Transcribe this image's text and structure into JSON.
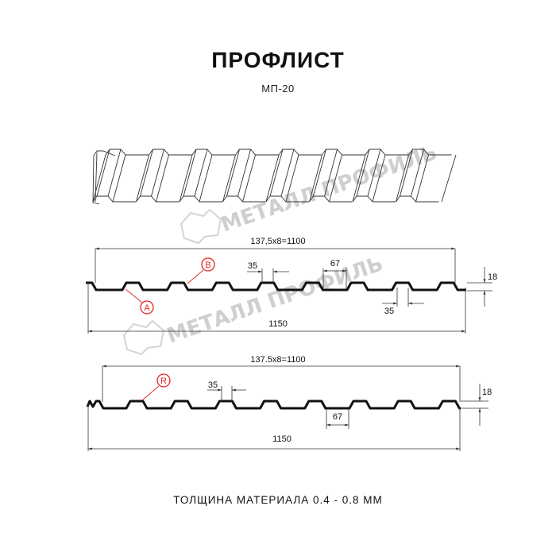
{
  "header": {
    "title": "ПРОФЛИСТ",
    "subtitle": "МП-20"
  },
  "watermark": {
    "brand": "МЕТАЛЛ ПРОФИЛЬ",
    "color": "#cfcfcf"
  },
  "profile_top": {
    "pitch_label": "137,5x8=1100",
    "width_label": "1150",
    "crest_label": "35",
    "valley_label": "67",
    "bottom_crest_label": "35",
    "height_label": "18",
    "marker_b": "B",
    "marker_a": "A"
  },
  "profile_bottom": {
    "pitch_label": "137.5x8=1100",
    "width_label": "1150",
    "crest_label": "35",
    "valley_label": "67",
    "height_label": "18",
    "marker_r": "R"
  },
  "footer": {
    "thickness": "ТОЛЩИНА МАТЕРИАЛА 0.4 - 0.8 ММ"
  },
  "colors": {
    "marker": "#e52421",
    "profile": "#111111",
    "dimension": "#333333"
  }
}
